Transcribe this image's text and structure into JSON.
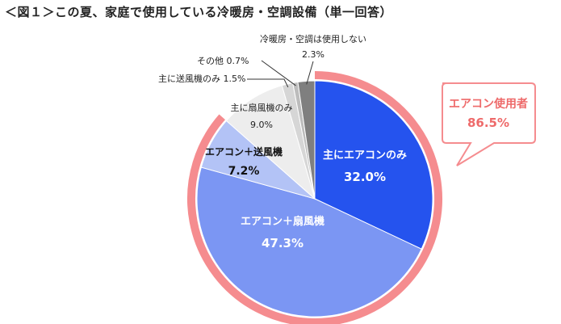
{
  "title": "＜図１＞この夏、家庭で使用している冷暖房・空調設備（単一回答）",
  "chart_data": {
    "type": "pie",
    "title": "＜図１＞この夏、家庭で使用している冷暖房・空調設備（単一回答）",
    "slices": [
      {
        "label": "主にエアコンのみ",
        "value": 32.0,
        "value_label": "32.0%",
        "color": "#2553ee"
      },
      {
        "label": "エアコン＋扇風機",
        "value": 47.3,
        "value_label": "47.3%",
        "color": "#7b96f3"
      },
      {
        "label": "エアコン＋送風機",
        "value": 7.2,
        "value_label": "7.2%",
        "color": "#b3c3f6"
      },
      {
        "label": "主に扇風機のみ",
        "value": 9.0,
        "value_label": "9.0%",
        "color": "#ededed"
      },
      {
        "label": "主に送風機のみ",
        "value": 1.5,
        "value_label": "1.5%",
        "color": "#d6d6d6"
      },
      {
        "label": "その他",
        "value": 0.7,
        "value_label": "0.7%",
        "color": "#bcbcbc"
      },
      {
        "label": "冷暖房・空調は使用しない",
        "value": 2.3,
        "value_label": "2.3%",
        "color": "#7f7f7f"
      }
    ],
    "group_annotation": {
      "label": "エアコン使用者",
      "value_label": "86.5%",
      "color": "#f58c8f"
    }
  }
}
